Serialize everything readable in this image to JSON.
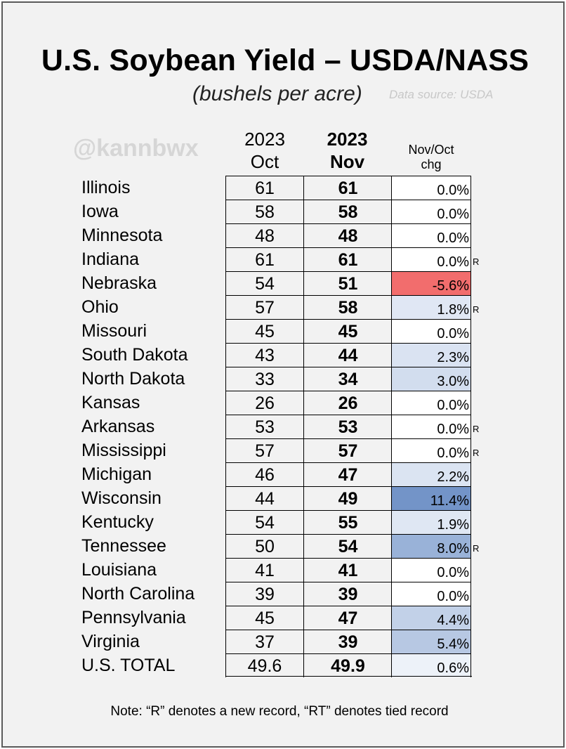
{
  "title": "U.S. Soybean Yield – USDA/NASS",
  "subtitle": "(bushels per acre)",
  "source": "Data source: USDA",
  "handle": "@kannbwx",
  "columns": {
    "oct": [
      "2023",
      "Oct"
    ],
    "nov": [
      "2023",
      "Nov"
    ],
    "chg": [
      "Nov/Oct",
      "chg"
    ]
  },
  "note": "Note: “R” denotes a new record, “RT” denotes tied record",
  "colors": {
    "negative": "#f26d6d",
    "positive_max": "#7394c8",
    "zero": "#ffffff"
  },
  "chart_data": {
    "type": "table",
    "title": "U.S. Soybean Yield – USDA/NASS",
    "subtitle": "(bushels per acre)",
    "columns": [
      "2023 Oct",
      "2023 Nov",
      "Nov/Oct chg"
    ],
    "rows": [
      {
        "state": "Illinois",
        "oct": "61",
        "nov": "61",
        "chg": "0.0%",
        "pct": 0.0,
        "mark": ""
      },
      {
        "state": "Iowa",
        "oct": "58",
        "nov": "58",
        "chg": "0.0%",
        "pct": 0.0,
        "mark": ""
      },
      {
        "state": "Minnesota",
        "oct": "48",
        "nov": "48",
        "chg": "0.0%",
        "pct": 0.0,
        "mark": ""
      },
      {
        "state": "Indiana",
        "oct": "61",
        "nov": "61",
        "chg": "0.0%",
        "pct": 0.0,
        "mark": "R"
      },
      {
        "state": "Nebraska",
        "oct": "54",
        "nov": "51",
        "chg": "-5.6%",
        "pct": -5.6,
        "mark": ""
      },
      {
        "state": "Ohio",
        "oct": "57",
        "nov": "58",
        "chg": "1.8%",
        "pct": 1.8,
        "mark": "R"
      },
      {
        "state": "Missouri",
        "oct": "45",
        "nov": "45",
        "chg": "0.0%",
        "pct": 0.0,
        "mark": ""
      },
      {
        "state": "South Dakota",
        "oct": "43",
        "nov": "44",
        "chg": "2.3%",
        "pct": 2.3,
        "mark": ""
      },
      {
        "state": "North Dakota",
        "oct": "33",
        "nov": "34",
        "chg": "3.0%",
        "pct": 3.0,
        "mark": ""
      },
      {
        "state": "Kansas",
        "oct": "26",
        "nov": "26",
        "chg": "0.0%",
        "pct": 0.0,
        "mark": ""
      },
      {
        "state": "Arkansas",
        "oct": "53",
        "nov": "53",
        "chg": "0.0%",
        "pct": 0.0,
        "mark": "R"
      },
      {
        "state": "Mississippi",
        "oct": "57",
        "nov": "57",
        "chg": "0.0%",
        "pct": 0.0,
        "mark": "R"
      },
      {
        "state": "Michigan",
        "oct": "46",
        "nov": "47",
        "chg": "2.2%",
        "pct": 2.2,
        "mark": ""
      },
      {
        "state": "Wisconsin",
        "oct": "44",
        "nov": "49",
        "chg": "11.4%",
        "pct": 11.4,
        "mark": ""
      },
      {
        "state": "Kentucky",
        "oct": "54",
        "nov": "55",
        "chg": "1.9%",
        "pct": 1.9,
        "mark": ""
      },
      {
        "state": "Tennessee",
        "oct": "50",
        "nov": "54",
        "chg": "8.0%",
        "pct": 8.0,
        "mark": "R"
      },
      {
        "state": "Louisiana",
        "oct": "41",
        "nov": "41",
        "chg": "0.0%",
        "pct": 0.0,
        "mark": ""
      },
      {
        "state": "North Carolina",
        "oct": "39",
        "nov": "39",
        "chg": "0.0%",
        "pct": 0.0,
        "mark": ""
      },
      {
        "state": "Pennsylvania",
        "oct": "45",
        "nov": "47",
        "chg": "4.4%",
        "pct": 4.4,
        "mark": ""
      },
      {
        "state": "Virginia",
        "oct": "37",
        "nov": "39",
        "chg": "5.4%",
        "pct": 5.4,
        "mark": ""
      },
      {
        "state": "U.S. TOTAL",
        "oct": "49.6",
        "nov": "49.9",
        "chg": "0.6%",
        "pct": 0.6,
        "mark": ""
      }
    ]
  }
}
